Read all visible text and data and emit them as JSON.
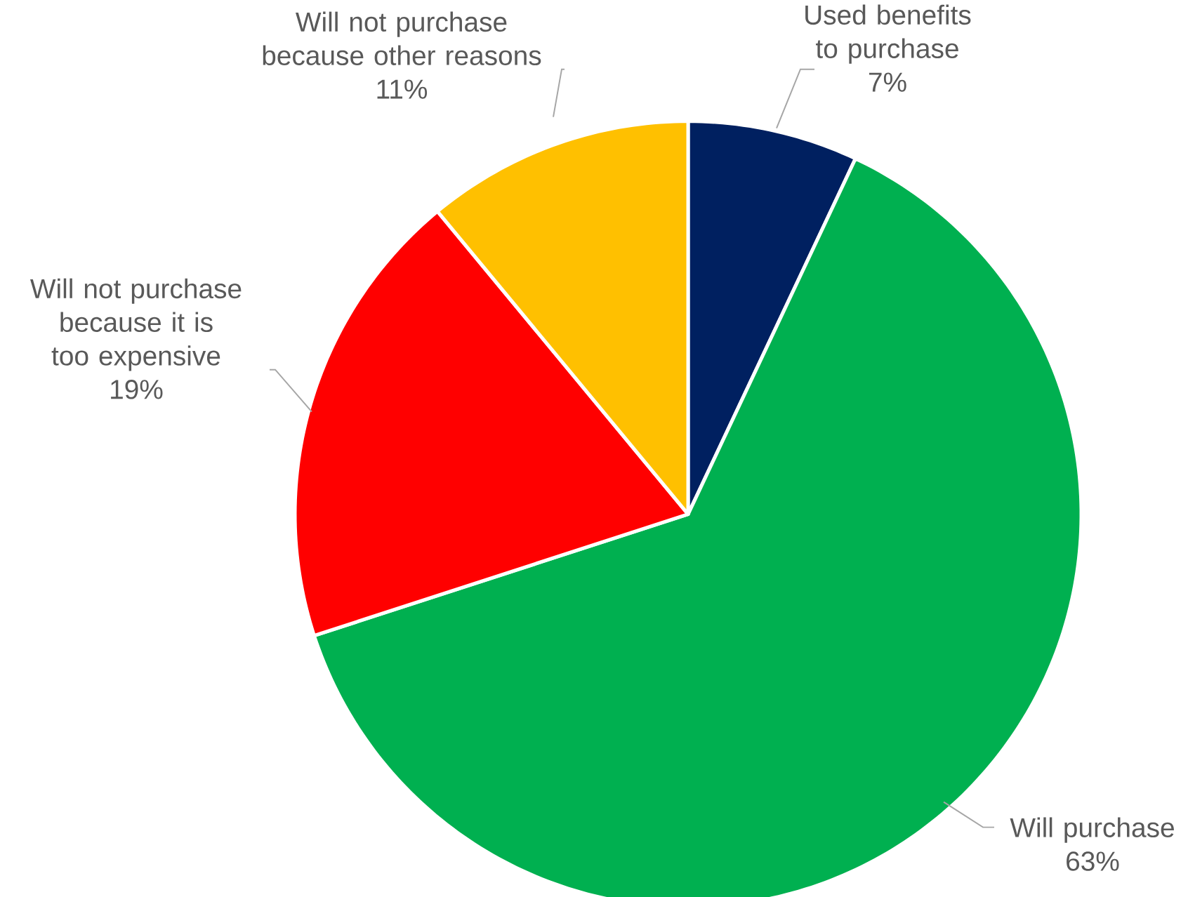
{
  "chart_data": {
    "type": "pie",
    "categories": [
      "Used benefits to purchase",
      "Will purchase",
      "Will not purchase because it is too expensive",
      "Will not purchase because other reasons"
    ],
    "values": [
      7,
      63,
      19,
      11
    ],
    "value_labels": [
      "7%",
      "63%",
      "19%",
      "11%"
    ],
    "colors": [
      "#002060",
      "#00b050",
      "#ff0000",
      "#ffc000"
    ]
  }
}
